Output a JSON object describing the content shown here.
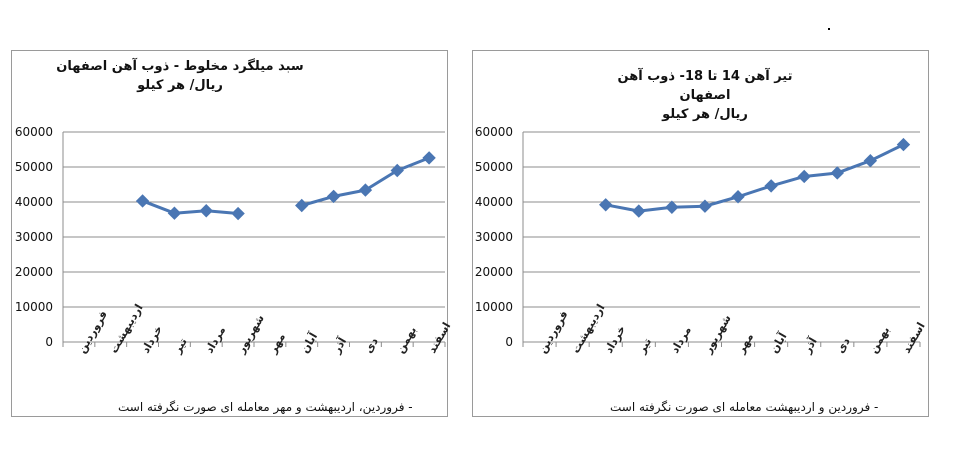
{
  "charts": [
    {
      "id": "left",
      "title_line1": "سبد میلگرد مخلوط - ذوب آهن اصفهان",
      "title_line2": "ریال/ هر کیلو",
      "note": "- فروردین، اردیبهشت و مهر معامله ای صورت نگرفته است"
    },
    {
      "id": "right",
      "title_line1": "تیر آهن 14 تا 18- ذوب آهن اصفهان",
      "title_line2": "ریال/ هر کیلو",
      "note": "- فروردین و اردیبهشت معامله ای صورت نگرفته است"
    }
  ],
  "chart_data": [
    {
      "type": "line",
      "title": "سبد میلگرد مخلوط - ذوب آهن اصفهان",
      "subtitle": "ریال/ هر کیلو",
      "categories": [
        "فروردین",
        "اردیبهشت",
        "خرداد",
        "تیر",
        "مرداد",
        "شهریور",
        "مهر",
        "آبان",
        "آذر",
        "دی",
        "بهمن",
        "اسفند"
      ],
      "values": [
        null,
        null,
        40300,
        36800,
        37500,
        36700,
        null,
        39000,
        41600,
        43400,
        49000,
        52600
      ],
      "ylim": [
        0,
        60000
      ],
      "yticks": [
        0,
        10000,
        20000,
        30000,
        40000,
        50000,
        60000
      ],
      "grid": true,
      "color": "#4a76b3"
    },
    {
      "type": "line",
      "title": "تیر آهن 14 تا 18- ذوب آهن اصفهان",
      "subtitle": "ریال/ هر کیلو",
      "categories": [
        "فروردین",
        "اردیبهشت",
        "خرداد",
        "تیر",
        "مرداد",
        "شهریور",
        "مهر",
        "آبان",
        "آذر",
        "دی",
        "بهمن",
        "اسفند"
      ],
      "values": [
        null,
        null,
        39200,
        37400,
        38500,
        38800,
        41500,
        44600,
        47300,
        48300,
        51800,
        56400
      ],
      "ylim": [
        0,
        60000
      ],
      "yticks": [
        0,
        10000,
        20000,
        30000,
        40000,
        50000,
        60000
      ],
      "grid": true,
      "color": "#4a76b3"
    }
  ]
}
